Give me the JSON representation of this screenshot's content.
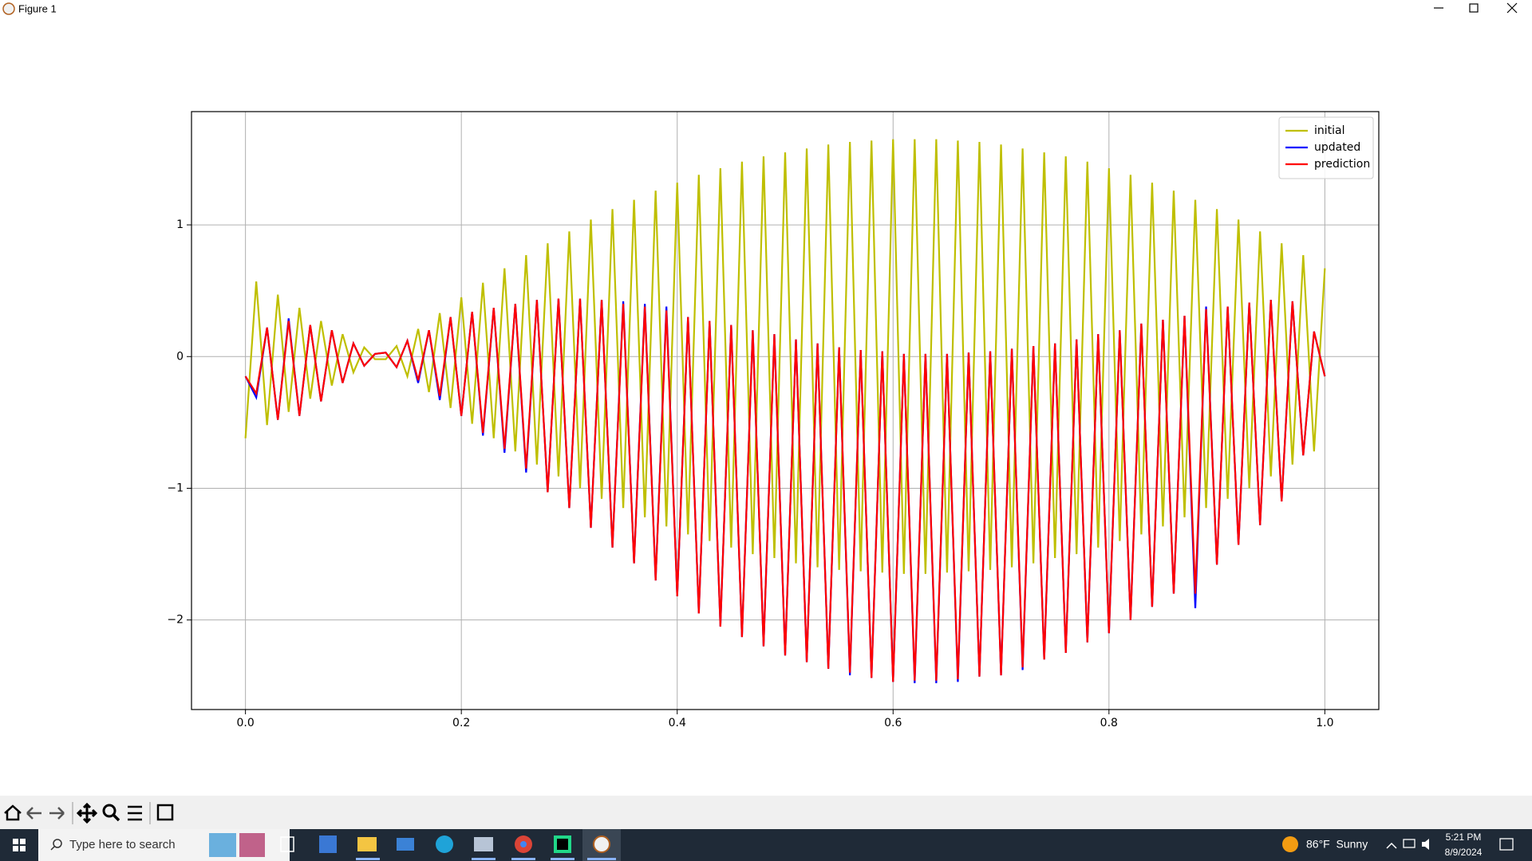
{
  "window": {
    "title": "Figure 1"
  },
  "taskbar": {
    "search": "Type here to search",
    "weather": "86°F  Sunny",
    "time": "5:21 PM",
    "date": "8/9/2024"
  },
  "chart_data": {
    "type": "line",
    "x": [
      0,
      0.01,
      0.02,
      0.03,
      0.04,
      0.05,
      0.06,
      0.07,
      0.08,
      0.09,
      0.1,
      0.11,
      0.12,
      0.13,
      0.14,
      0.15,
      0.16,
      0.17,
      0.18,
      0.19,
      0.2,
      0.21,
      0.22,
      0.23,
      0.24,
      0.25,
      0.26,
      0.27,
      0.28,
      0.29,
      0.3,
      0.31,
      0.32,
      0.33,
      0.34,
      0.35,
      0.36,
      0.37,
      0.38,
      0.39,
      0.4,
      0.41,
      0.42,
      0.43,
      0.44,
      0.45,
      0.46,
      0.47,
      0.48,
      0.49,
      0.5,
      0.51,
      0.52,
      0.53,
      0.54,
      0.55,
      0.56,
      0.57,
      0.58,
      0.59,
      0.6,
      0.61,
      0.62,
      0.63,
      0.64,
      0.65,
      0.66,
      0.67,
      0.68,
      0.69,
      0.7,
      0.71,
      0.72,
      0.73,
      0.74,
      0.75,
      0.76,
      0.77,
      0.78,
      0.79,
      0.8,
      0.81,
      0.82,
      0.83,
      0.84,
      0.85,
      0.86,
      0.87,
      0.88,
      0.89,
      0.9,
      0.91,
      0.92,
      0.93,
      0.94,
      0.95,
      0.96,
      0.97,
      0.98,
      0.99,
      1
    ],
    "series": [
      {
        "name": "initial",
        "color": "#bfbf00",
        "values": [
          -0.62,
          0.57,
          -0.52,
          0.47,
          -0.42,
          0.37,
          -0.32,
          0.27,
          -0.22,
          0.17,
          -0.12,
          0.07,
          -0.02,
          -0.02,
          0.08,
          -0.15,
          0.21,
          -0.27,
          0.33,
          -0.39,
          0.45,
          -0.51,
          0.56,
          -0.62,
          0.67,
          -0.72,
          0.77,
          -0.82,
          0.86,
          -0.91,
          0.95,
          -1.0,
          1.04,
          -1.08,
          1.12,
          -1.15,
          1.19,
          -1.22,
          1.26,
          -1.29,
          1.32,
          -1.35,
          1.38,
          -1.4,
          1.43,
          -1.45,
          1.48,
          -1.5,
          1.52,
          -1.53,
          1.55,
          -1.57,
          1.58,
          -1.6,
          1.61,
          -1.62,
          1.63,
          -1.63,
          1.64,
          -1.64,
          1.65,
          -1.65,
          1.65,
          -1.65,
          1.65,
          -1.64,
          1.64,
          -1.63,
          1.63,
          -1.62,
          1.61,
          -1.6,
          1.58,
          -1.57,
          1.55,
          -1.53,
          1.52,
          -1.5,
          1.48,
          -1.45,
          1.43,
          -1.4,
          1.38,
          -1.35,
          1.32,
          -1.29,
          1.26,
          -1.22,
          1.19,
          -1.15,
          1.12,
          -1.08,
          1.04,
          -1.0,
          0.95,
          -0.91,
          0.86,
          -0.82,
          0.77,
          -0.72,
          0.67
        ]
      },
      {
        "name": "updated",
        "color": "#0000ff",
        "values": [
          -0.15,
          -0.31,
          0.22,
          -0.48,
          0.29,
          -0.45,
          0.24,
          -0.34,
          0.2,
          -0.2,
          0.1,
          -0.07,
          0.02,
          0.03,
          -0.08,
          0.12,
          -0.2,
          0.2,
          -0.33,
          0.3,
          -0.45,
          0.34,
          -0.6,
          0.37,
          -0.73,
          0.4,
          -0.88,
          0.43,
          -1.03,
          0.44,
          -1.15,
          0.44,
          -1.3,
          0.43,
          -1.45,
          0.42,
          -1.57,
          0.4,
          -1.7,
          0.38,
          -1.82,
          0.3,
          -1.95,
          0.27,
          -2.05,
          0.24,
          -2.13,
          0.2,
          -2.2,
          0.17,
          -2.27,
          0.13,
          -2.32,
          0.1,
          -2.37,
          0.07,
          -2.42,
          0.05,
          -2.44,
          0.04,
          -2.47,
          0.02,
          -2.48,
          0.02,
          -2.48,
          0.02,
          -2.47,
          0.03,
          -2.43,
          0.04,
          -2.42,
          0.06,
          -2.38,
          0.08,
          -2.3,
          0.1,
          -2.25,
          0.13,
          -2.17,
          0.17,
          -2.1,
          0.2,
          -2.0,
          0.25,
          -1.9,
          0.28,
          -1.8,
          0.31,
          -1.91,
          0.38,
          -1.58,
          0.38,
          -1.43,
          0.41,
          -1.28,
          0.43,
          -1.1,
          0.42,
          -0.75,
          0.19,
          -0.15
        ]
      },
      {
        "name": "prediction",
        "color": "#ff0000",
        "values": [
          -0.15,
          -0.28,
          0.22,
          -0.48,
          0.27,
          -0.45,
          0.24,
          -0.34,
          0.2,
          -0.2,
          0.1,
          -0.07,
          0.02,
          0.03,
          -0.08,
          0.12,
          -0.18,
          0.2,
          -0.3,
          0.3,
          -0.45,
          0.34,
          -0.58,
          0.37,
          -0.7,
          0.4,
          -0.85,
          0.43,
          -1.03,
          0.44,
          -1.15,
          0.44,
          -1.3,
          0.43,
          -1.45,
          0.4,
          -1.57,
          0.38,
          -1.7,
          0.35,
          -1.82,
          0.3,
          -1.95,
          0.27,
          -2.05,
          0.24,
          -2.13,
          0.2,
          -2.2,
          0.17,
          -2.27,
          0.13,
          -2.32,
          0.1,
          -2.37,
          0.07,
          -2.4,
          0.05,
          -2.44,
          0.04,
          -2.47,
          0.02,
          -2.46,
          0.02,
          -2.46,
          0.02,
          -2.45,
          0.03,
          -2.43,
          0.04,
          -2.42,
          0.06,
          -2.36,
          0.08,
          -2.3,
          0.1,
          -2.25,
          0.13,
          -2.17,
          0.17,
          -2.1,
          0.2,
          -2.0,
          0.25,
          -1.9,
          0.28,
          -1.8,
          0.31,
          -1.8,
          0.36,
          -1.58,
          0.38,
          -1.43,
          0.41,
          -1.28,
          0.43,
          -1.1,
          0.42,
          -0.75,
          0.19,
          -0.15
        ]
      }
    ],
    "xlim": [
      -0.05,
      1.05
    ],
    "ylim": [
      -2.68,
      1.86
    ],
    "xticks": [
      {
        "value": 0,
        "label": "0.0"
      },
      0.2,
      0.4,
      0.6,
      0.8,
      {
        "value": 1,
        "label": "1.0"
      }
    ],
    "yticks": [
      {
        "value": -2,
        "label": "−2"
      },
      {
        "value": -1,
        "label": "−1"
      },
      0,
      1
    ],
    "grid": true,
    "legend": "upper right"
  }
}
